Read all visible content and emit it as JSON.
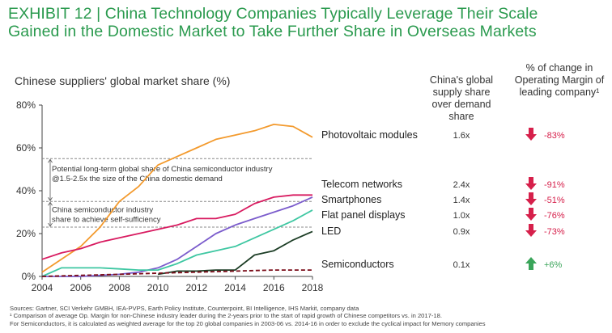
{
  "header": {
    "title_line1": "EXHIBIT 12 | China Technology Companies Typically Leverage Their Scale",
    "title_line2": "Gained in the Domestic Market to Take Further Share in Overseas Markets"
  },
  "columns": {
    "supply_share": "China's global supply share over demand share",
    "margin_change": "% of change in Operating Margin of leading company¹"
  },
  "chart_data": {
    "type": "line",
    "title": "Chinese suppliers' global market share (%)",
    "x_ticks": [
      "2004",
      "2006",
      "2008",
      "2010",
      "2012",
      "2014",
      "2016",
      "2018"
    ],
    "y_ticks": [
      "0%",
      "20%",
      "40%",
      "60%",
      "80%"
    ],
    "xlim": [
      2004,
      2018
    ],
    "ylim": [
      0,
      80
    ],
    "grid": false,
    "reference_lines": [
      {
        "y": 55,
        "style": "dashed"
      },
      {
        "y": 35,
        "style": "dashed"
      },
      {
        "y": 23,
        "style": "dashed"
      }
    ],
    "annotations": [
      {
        "text": "Potential long-term global share of China semiconductor industry @1.5-2.5x the size of the China domestic demand",
        "range": [
          35,
          55
        ]
      },
      {
        "text": "China semiconductor industry share to achieve self-sufficiency",
        "range": [
          23,
          35
        ]
      }
    ],
    "series": [
      {
        "name": "Photovoltaic modules",
        "color": "#f39a2d",
        "style": "solid",
        "supply_ratio": "1.6x",
        "margin_change": "-83%",
        "direction": "down",
        "x": [
          2004,
          2005,
          2006,
          2007,
          2008,
          2009,
          2010,
          2011,
          2012,
          2013,
          2014,
          2015,
          2016,
          2017,
          2018
        ],
        "y": [
          2,
          8,
          14,
          23,
          35,
          42,
          52,
          56,
          60,
          64,
          66,
          68,
          71,
          70,
          65
        ]
      },
      {
        "name": "Telecom networks",
        "color": "#d81b60",
        "style": "solid",
        "supply_ratio": "2.4x",
        "margin_change": "-91%",
        "direction": "down",
        "x": [
          2004,
          2005,
          2006,
          2007,
          2008,
          2009,
          2010,
          2011,
          2012,
          2013,
          2014,
          2015,
          2016,
          2017,
          2018
        ],
        "y": [
          8,
          11,
          13,
          16,
          18,
          20,
          22,
          24,
          27,
          27,
          29,
          34,
          37,
          38,
          38
        ]
      },
      {
        "name": "Smartphones",
        "color": "#7b5ccc",
        "style": "solid",
        "supply_ratio": "1.4x",
        "margin_change": "-51%",
        "direction": "down",
        "x": [
          2004,
          2006,
          2008,
          2009,
          2010,
          2011,
          2012,
          2013,
          2014,
          2015,
          2016,
          2017,
          2018
        ],
        "y": [
          0,
          0,
          1,
          2,
          4,
          8,
          14,
          20,
          24,
          27,
          30,
          33,
          37
        ]
      },
      {
        "name": "Flat panel displays",
        "color": "#3ec7a2",
        "style": "solid",
        "supply_ratio": "1.0x",
        "margin_change": "-76%",
        "direction": "down",
        "x": [
          2004,
          2005,
          2006,
          2007,
          2008,
          2009,
          2010,
          2011,
          2012,
          2013,
          2014,
          2015,
          2016,
          2017,
          2018
        ],
        "y": [
          0,
          4,
          4,
          4,
          3.5,
          3,
          3,
          6,
          10,
          12,
          14,
          18,
          22,
          26,
          31
        ]
      },
      {
        "name": "LED",
        "color": "#1c3d25",
        "style": "solid",
        "supply_ratio": "0.9x",
        "margin_change": "-73%",
        "direction": "down",
        "x": [
          2010,
          2011,
          2012,
          2013,
          2014,
          2015,
          2016,
          2017,
          2018
        ],
        "y": [
          1,
          2.5,
          2.5,
          3,
          3,
          10,
          12,
          17,
          21
        ]
      },
      {
        "name": "Semiconductors",
        "color": "#7a0b18",
        "style": "dashed",
        "supply_ratio": "0.1x",
        "margin_change": "+6%",
        "direction": "up",
        "x": [
          2004,
          2006,
          2008,
          2010,
          2012,
          2014,
          2016,
          2018
        ],
        "y": [
          0,
          0.5,
          1,
          1.5,
          2,
          2.5,
          3,
          3
        ]
      }
    ]
  },
  "colors": {
    "title": "#2a9a4e",
    "arrow_down": "#d6204b",
    "arrow_up": "#3aa55a",
    "margin_down_text": "#d6204b",
    "margin_up_text": "#3aa55a"
  },
  "footer": {
    "sources": "Sources: Gartner, SCI Verkehr GMBH, IEA-PVPS, Earth Policy Institute, Counterpoint, BI Intelligence, IHS Markit, company data",
    "note1": "¹ Comparison of average Op. Margin for non-Chinese industry leader during the 2-years prior to the start of rapid growth of Chinese competitors vs. in 2017-18.",
    "note2": "For Semiconductors, it is calculated as weighted average for the top 20 global companies in 2003-06 vs. 2014-16 in order to exclude the cyclical impact for Memory companies"
  }
}
